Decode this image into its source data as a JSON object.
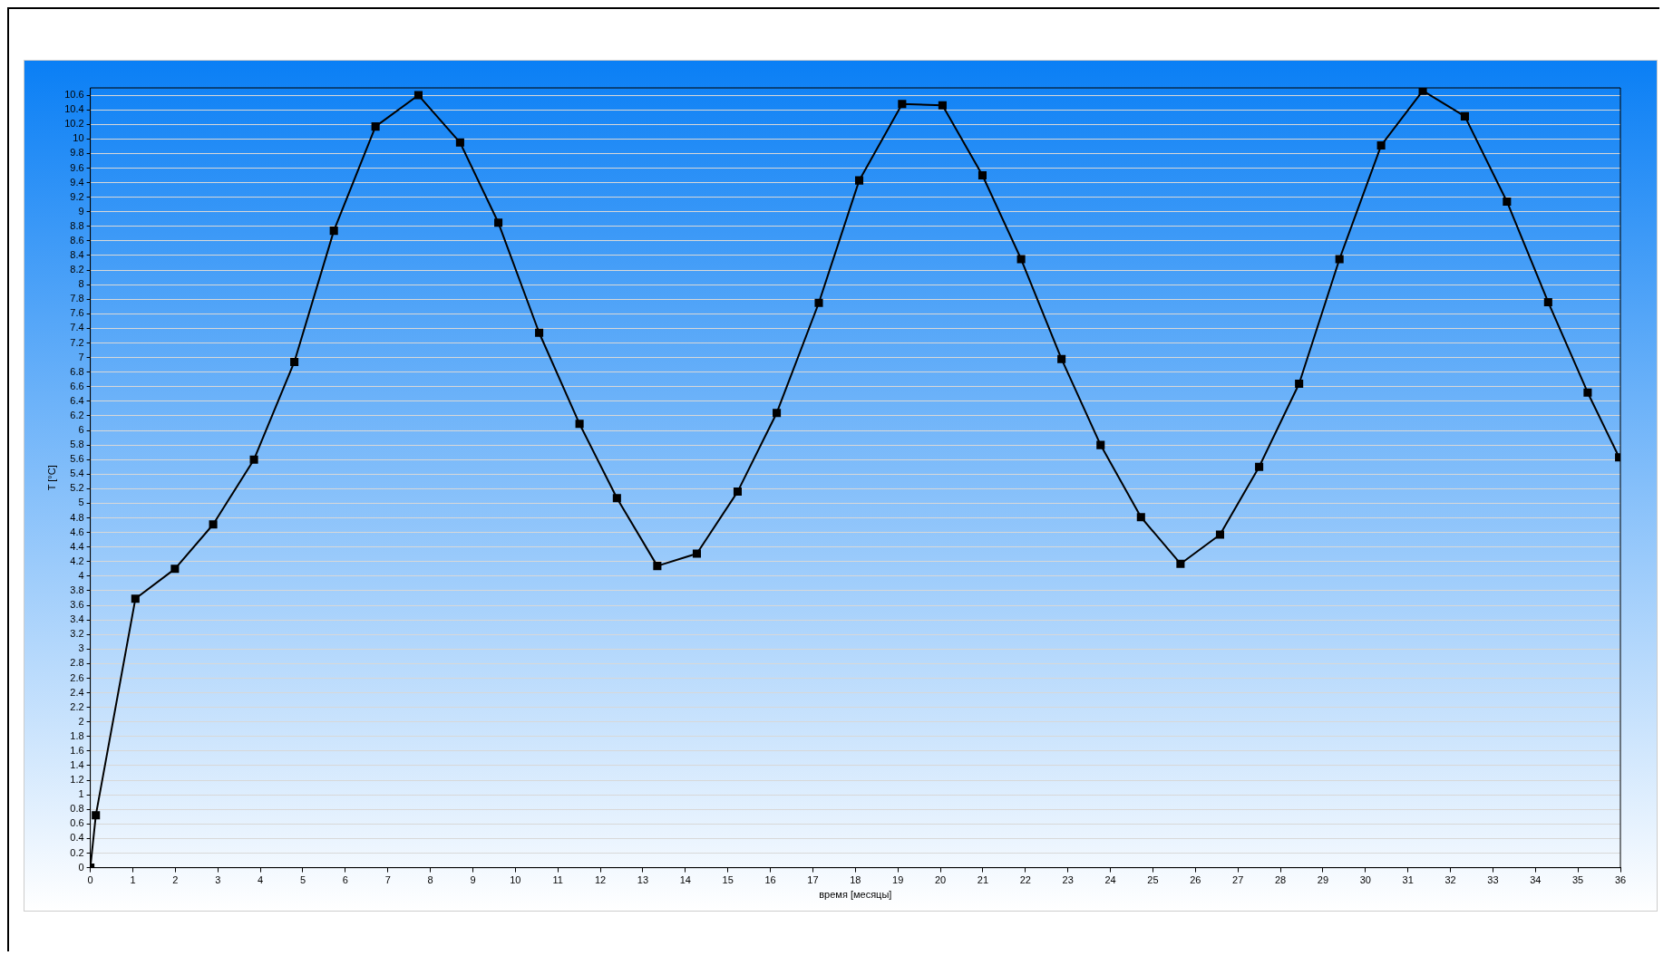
{
  "chart_data": {
    "type": "line",
    "xlabel": "время [месяцы]",
    "ylabel": "T [°C]",
    "x": [
      0,
      0.13,
      1.06,
      1.99,
      2.89,
      3.85,
      4.8,
      5.73,
      6.71,
      7.72,
      8.7,
      9.6,
      10.56,
      11.51,
      12.39,
      13.34,
      14.27,
      15.23,
      16.15,
      17.14,
      18.09,
      19.1,
      20.05,
      20.99,
      21.9,
      22.85,
      23.77,
      24.72,
      25.65,
      26.58,
      27.5,
      28.44,
      29.39,
      30.37,
      31.35,
      32.34,
      33.33,
      34.3,
      35.23,
      35.97
    ],
    "series": [
      {
        "color": "#000000",
        "values": [
          0,
          0.72,
          3.69,
          4.1,
          4.71,
          5.6,
          6.94,
          8.74,
          10.17,
          10.6,
          9.95,
          8.85,
          7.34,
          6.09,
          5.07,
          4.14,
          4.31,
          5.16,
          6.24,
          7.75,
          9.43,
          10.48,
          10.46,
          9.5,
          8.35,
          6.98,
          5.8,
          4.81,
          4.17,
          4.57,
          5.5,
          6.64,
          8.35,
          9.91,
          10.66,
          10.31,
          9.14,
          7.76,
          6.52,
          5.63
        ]
      }
    ],
    "xlim": [
      0,
      36
    ],
    "xticks": [
      0,
      1,
      2,
      3,
      4,
      5,
      6,
      7,
      8,
      9,
      10,
      11,
      12,
      13,
      14,
      15,
      16,
      17,
      18,
      19,
      20,
      21,
      22,
      23,
      24,
      25,
      26,
      27,
      28,
      29,
      30,
      31,
      32,
      33,
      34,
      35,
      36
    ],
    "ylim": [
      0,
      10.7
    ],
    "yticks": [
      0,
      0.2,
      0.4,
      0.6,
      0.8,
      1,
      1.2,
      1.4,
      1.6,
      1.8,
      2,
      2.2,
      2.4,
      2.6,
      2.8,
      3,
      3.2,
      3.4,
      3.6,
      3.8,
      4,
      4.2,
      4.4,
      4.6,
      4.8,
      5,
      5.2,
      5.4,
      5.6,
      5.8,
      6,
      6.2,
      6.4,
      6.6,
      6.8,
      7,
      7.2,
      7.4,
      7.6,
      7.8,
      8,
      8.2,
      8.4,
      8.6,
      8.8,
      9,
      9.2,
      9.4,
      9.6,
      9.8,
      10,
      10.2,
      10.4,
      10.6
    ],
    "grid": "y",
    "marker": "square",
    "line_style": "solid",
    "legend": false
  }
}
